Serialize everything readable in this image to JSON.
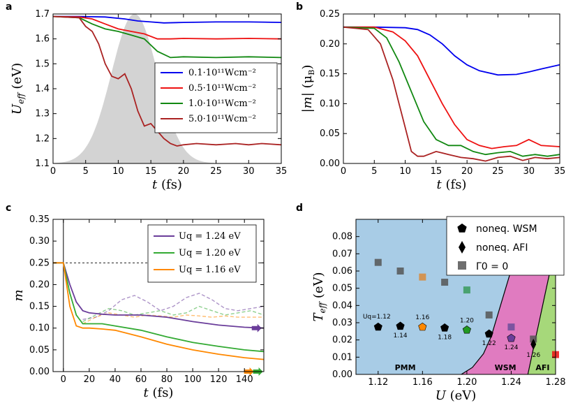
{
  "colors": {
    "blue": "#0000ee",
    "red": "#ee1111",
    "green": "#118811",
    "brown": "#aa2222",
    "purple": "#6a3d9a",
    "green2": "#33aa33",
    "orange": "#ff8800",
    "pmm": "#a8cce6",
    "wsm": "#e07bc0",
    "afi": "#a6d87a",
    "pulse": "#d3d3d3"
  },
  "chart_data": [
    {
      "panel": "a",
      "type": "line",
      "xlabel": "t (fs)",
      "ylabel": "U_eff (eV)",
      "xlim": [
        0,
        35
      ],
      "ylim": [
        1.1,
        1.7
      ],
      "xticks": [
        "0",
        "5",
        "10",
        "15",
        "20",
        "25",
        "30",
        "35"
      ],
      "yticks": [
        "1.1",
        "1.2",
        "1.3",
        "1.4",
        "1.5",
        "1.6",
        "1.7"
      ],
      "pulse": {
        "center": 12.5,
        "width": 5.0,
        "peak": 1.7
      },
      "series": [
        {
          "name": "0.1·10^11 Wcm^-2",
          "color": "blue",
          "x": [
            0,
            4,
            8,
            11,
            13,
            15,
            17,
            20,
            25,
            30,
            35
          ],
          "y": [
            1.69,
            1.69,
            1.688,
            1.68,
            1.672,
            1.668,
            1.664,
            1.666,
            1.668,
            1.668,
            1.666
          ]
        },
        {
          "name": "0.5·10^11 Wcm^-2",
          "color": "red",
          "x": [
            0,
            4,
            6,
            8,
            10,
            12,
            14,
            16,
            18,
            20,
            25,
            30,
            35
          ],
          "y": [
            1.69,
            1.688,
            1.68,
            1.66,
            1.64,
            1.63,
            1.62,
            1.6,
            1.6,
            1.602,
            1.6,
            1.602,
            1.6
          ]
        },
        {
          "name": "1.0·10^11 Wcm^-2",
          "color": "green",
          "x": [
            0,
            4,
            6,
            8,
            10,
            12,
            14,
            16,
            18,
            20,
            25,
            30,
            35
          ],
          "y": [
            1.69,
            1.685,
            1.66,
            1.64,
            1.63,
            1.615,
            1.6,
            1.55,
            1.525,
            1.528,
            1.525,
            1.528,
            1.525
          ]
        },
        {
          "name": "5.0·10^11 Wcm^-2",
          "color": "brown",
          "x": [
            0,
            4,
            5,
            6,
            7,
            8,
            9,
            10,
            11,
            12,
            13,
            14,
            15,
            16,
            17,
            18,
            19,
            20,
            22,
            25,
            28,
            30,
            32,
            35
          ],
          "y": [
            1.69,
            1.685,
            1.65,
            1.63,
            1.58,
            1.5,
            1.45,
            1.44,
            1.46,
            1.4,
            1.31,
            1.25,
            1.26,
            1.23,
            1.2,
            1.18,
            1.17,
            1.175,
            1.18,
            1.175,
            1.18,
            1.175,
            1.18,
            1.175
          ]
        }
      ]
    },
    {
      "panel": "b",
      "type": "line",
      "xlabel": "t (fs)",
      "ylabel": "|m| (μB)",
      "xlim": [
        0,
        35
      ],
      "ylim": [
        0,
        0.25
      ],
      "xticks": [
        "0",
        "5",
        "10",
        "15",
        "20",
        "25",
        "30",
        "35"
      ],
      "yticks": [
        "0.00",
        "0.05",
        "0.10",
        "0.15",
        "0.20",
        "0.25"
      ],
      "series": [
        {
          "name": "0.1",
          "color": "blue",
          "x": [
            0,
            5,
            10,
            12,
            14,
            16,
            18,
            20,
            22,
            25,
            28,
            30,
            32,
            35
          ],
          "y": [
            0.228,
            0.228,
            0.227,
            0.224,
            0.215,
            0.2,
            0.18,
            0.165,
            0.155,
            0.148,
            0.149,
            0.153,
            0.158,
            0.165
          ]
        },
        {
          "name": "0.5",
          "color": "red",
          "x": [
            0,
            5,
            8,
            10,
            12,
            14,
            16,
            18,
            20,
            22,
            24,
            26,
            28,
            30,
            32,
            35
          ],
          "y": [
            0.228,
            0.228,
            0.22,
            0.205,
            0.18,
            0.14,
            0.1,
            0.065,
            0.04,
            0.03,
            0.025,
            0.028,
            0.03,
            0.04,
            0.03,
            0.028
          ]
        },
        {
          "name": "1.0",
          "color": "green",
          "x": [
            0,
            5,
            7,
            9,
            11,
            13,
            15,
            17,
            19,
            21,
            23,
            25,
            27,
            29,
            31,
            33,
            35
          ],
          "y": [
            0.228,
            0.226,
            0.21,
            0.17,
            0.12,
            0.07,
            0.04,
            0.03,
            0.03,
            0.02,
            0.015,
            0.018,
            0.02,
            0.012,
            0.015,
            0.012,
            0.015
          ]
        },
        {
          "name": "5.0",
          "color": "brown",
          "x": [
            0,
            4,
            6,
            8,
            9,
            10,
            11,
            12,
            13,
            15,
            17,
            19,
            21,
            23,
            25,
            27,
            29,
            31,
            33,
            35
          ],
          "y": [
            0.228,
            0.224,
            0.2,
            0.14,
            0.1,
            0.06,
            0.02,
            0.012,
            0.012,
            0.02,
            0.015,
            0.01,
            0.008,
            0.004,
            0.01,
            0.012,
            0.005,
            0.01,
            0.008,
            0.01
          ]
        }
      ]
    },
    {
      "panel": "c",
      "type": "line",
      "xlabel": "t (fs)",
      "ylabel": "m",
      "xlim": [
        -8,
        155
      ],
      "ylim": [
        0,
        0.35
      ],
      "xticks": [
        "0",
        "20",
        "40",
        "60",
        "80",
        "100",
        "120",
        "140"
      ],
      "yticks": [
        "0.00",
        "0.05",
        "0.10",
        "0.15",
        "0.20",
        "0.25",
        "0.30",
        "0.35"
      ],
      "hlines": [
        0.25,
        0.0
      ],
      "series": [
        {
          "name": "U_q = 1.24 eV",
          "color": "purple",
          "x": [
            -8,
            0,
            5,
            10,
            15,
            20,
            30,
            40,
            60,
            80,
            100,
            120,
            140,
            155
          ],
          "y": [
            0.25,
            0.25,
            0.2,
            0.16,
            0.14,
            0.135,
            0.132,
            0.13,
            0.13,
            0.125,
            0.115,
            0.107,
            0.102,
            0.1
          ]
        },
        {
          "name": "U_q = 1.20 eV",
          "color": "green2",
          "x": [
            -8,
            0,
            5,
            10,
            15,
            20,
            30,
            40,
            60,
            80,
            100,
            120,
            140,
            155
          ],
          "y": [
            0.25,
            0.25,
            0.18,
            0.13,
            0.11,
            0.11,
            0.11,
            0.105,
            0.095,
            0.08,
            0.067,
            0.058,
            0.05,
            0.046
          ]
        },
        {
          "name": "U_q = 1.16 eV",
          "color": "orange",
          "x": [
            -8,
            0,
            5,
            10,
            15,
            20,
            30,
            40,
            60,
            80,
            100,
            120,
            140,
            155
          ],
          "y": [
            0.25,
            0.25,
            0.15,
            0.105,
            0.1,
            0.1,
            0.098,
            0.095,
            0.08,
            0.063,
            0.05,
            0.04,
            0.032,
            0.028
          ]
        }
      ],
      "dashed": [
        {
          "color": "purple",
          "x": [
            15,
            25,
            35,
            45,
            55,
            65,
            75,
            85,
            95,
            105,
            115,
            125,
            135,
            145,
            155
          ],
          "y": [
            0.12,
            0.125,
            0.14,
            0.165,
            0.175,
            0.16,
            0.14,
            0.15,
            0.17,
            0.18,
            0.165,
            0.145,
            0.14,
            0.145,
            0.15
          ]
        },
        {
          "color": "green2",
          "x": [
            15,
            25,
            35,
            45,
            55,
            65,
            75,
            85,
            95,
            105,
            115,
            125,
            135,
            145,
            155
          ],
          "y": [
            0.115,
            0.13,
            0.145,
            0.14,
            0.13,
            0.135,
            0.14,
            0.13,
            0.135,
            0.15,
            0.14,
            0.13,
            0.135,
            0.14,
            0.13
          ]
        },
        {
          "color": "orange",
          "x": [
            15,
            25,
            35,
            45,
            55,
            65,
            75,
            85,
            95,
            105,
            115,
            125,
            135,
            145,
            155
          ],
          "y": [
            0.11,
            0.125,
            0.135,
            0.13,
            0.125,
            0.13,
            0.128,
            0.125,
            0.13,
            0.128,
            0.125,
            0.128,
            0.125,
            0.125,
            0.125
          ]
        }
      ]
    },
    {
      "panel": "d",
      "type": "scatter",
      "xlabel": "U (eV)",
      "ylabel": "T_eff (eV)",
      "xlim": [
        1.1,
        1.28
      ],
      "ylim": [
        0,
        0.09
      ],
      "xticks": [
        "1.12",
        "1.16",
        "1.20",
        "1.24",
        "1.28"
      ],
      "yticks": [
        "0.00",
        "0.01",
        "0.02",
        "0.03",
        "0.04",
        "0.05",
        "0.06",
        "0.07",
        "0.08"
      ],
      "regions": [
        "PMM",
        "WSM",
        "AFI"
      ],
      "legend": [
        "noneq. WSM",
        "noneq. AFI",
        "Γ0 = 0"
      ],
      "pentagons": [
        {
          "x": 1.12,
          "y": 0.0275,
          "label": "Uq=1.12",
          "color": "#000"
        },
        {
          "x": 1.14,
          "y": 0.028,
          "label": "1.14",
          "color": "#000"
        },
        {
          "x": 1.16,
          "y": 0.0275,
          "label": "1.16",
          "color": "#ff8800"
        },
        {
          "x": 1.18,
          "y": 0.027,
          "label": "1.18",
          "color": "#000"
        },
        {
          "x": 1.2,
          "y": 0.0258,
          "label": "1.20",
          "color": "#229922"
        },
        {
          "x": 1.22,
          "y": 0.0235,
          "label": "1.22",
          "color": "#000"
        },
        {
          "x": 1.24,
          "y": 0.021,
          "label": "1.24",
          "color": "#6a3d9a"
        }
      ],
      "diamonds": [
        {
          "x": 1.26,
          "y": 0.0175,
          "label": "1.26"
        }
      ],
      "squares": [
        {
          "x": 1.12,
          "y": 0.065,
          "color": "#555"
        },
        {
          "x": 1.14,
          "y": 0.06,
          "color": "#555"
        },
        {
          "x": 1.16,
          "y": 0.0565,
          "color": "#d98a3a"
        },
        {
          "x": 1.18,
          "y": 0.0535,
          "color": "#555"
        },
        {
          "x": 1.2,
          "y": 0.049,
          "color": "#3a9a5a"
        },
        {
          "x": 1.22,
          "y": 0.0345,
          "color": "#555"
        },
        {
          "x": 1.24,
          "y": 0.0275,
          "color": "#6a4d9a"
        },
        {
          "x": 1.26,
          "y": 0.0205,
          "color": "#555"
        },
        {
          "x": 1.28,
          "y": 0.0115,
          "color": "#ee1111"
        }
      ]
    }
  ],
  "labels": {
    "a": "a",
    "b": "b",
    "c": "c",
    "d": "d",
    "legA": [
      "0.1·10¹¹Wcm⁻²",
      "0.5·10¹¹Wcm⁻²",
      "1.0·10¹¹Wcm⁻²",
      "5.0·10¹¹Wcm⁻²"
    ],
    "legC": [
      "Uq = 1.24 eV",
      "Uq = 1.20 eV",
      "Uq = 1.16 eV"
    ]
  }
}
